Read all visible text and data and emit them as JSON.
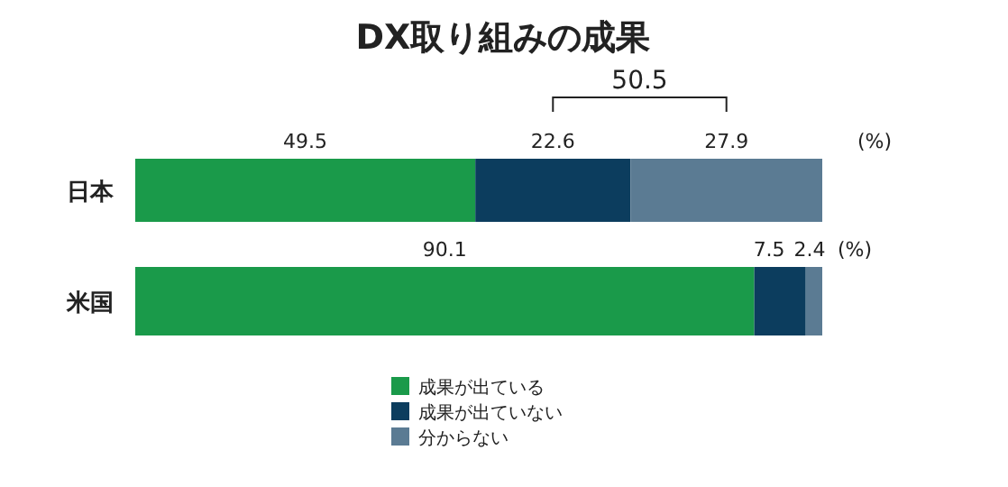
{
  "chart_data": {
    "type": "bar",
    "orientation": "horizontal",
    "stacked": true,
    "title": "DX取り組みの成果",
    "categories": [
      "日本",
      "米国"
    ],
    "series": [
      {
        "name": "成果が出ている",
        "color": "#1a9a4a",
        "values": [
          49.5,
          90.1
        ]
      },
      {
        "name": "成果が出ていない",
        "color": "#0c3d5e",
        "values": [
          22.6,
          7.5
        ]
      },
      {
        "name": "分からない",
        "color": "#5b7b93",
        "values": [
          27.9,
          2.4
        ]
      }
    ],
    "data_labels": true,
    "legend": "bottom",
    "annotations": [
      "50.5",
      "(%)",
      "(%)"
    ]
  }
}
